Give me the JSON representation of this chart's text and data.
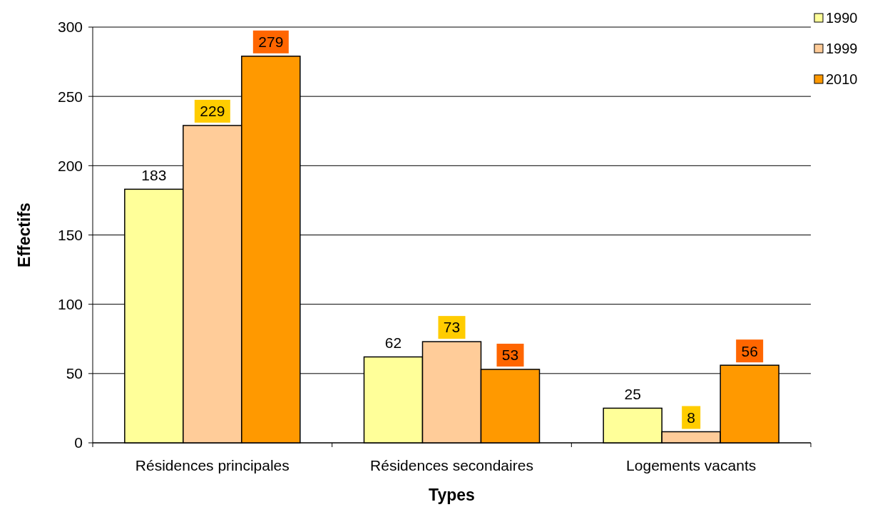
{
  "chart_data": {
    "type": "bar",
    "xlabel": "Types",
    "ylabel": "Effectifs",
    "categories": [
      "Résidences principales",
      "Résidences secondaires",
      "Logements vacants"
    ],
    "series": [
      {
        "name": "1990",
        "color": "#ffff99",
        "values": [
          183,
          62,
          25
        ]
      },
      {
        "name": "1999",
        "color": "#ffcc99",
        "values": [
          229,
          73,
          8
        ]
      },
      {
        "name": "2010",
        "color": "#ff9900",
        "values": [
          279,
          53,
          56
        ]
      }
    ],
    "ylim": [
      0,
      300
    ],
    "yticks": [
      0,
      50,
      100,
      150,
      200,
      250,
      300
    ],
    "grid": "y",
    "legend": "top right",
    "data_labels": true
  }
}
